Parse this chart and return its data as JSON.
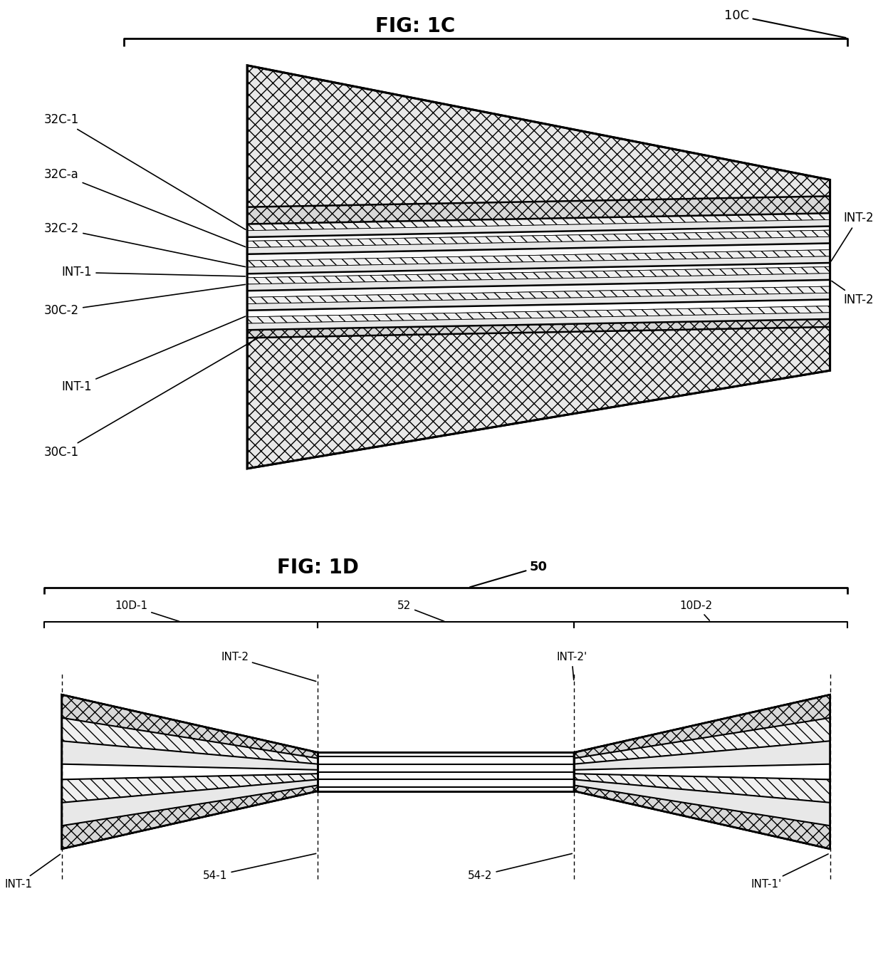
{
  "fig1c_title": "FIG: 1C",
  "fig1d_title": "FIG: 1D",
  "label_10C": "10C",
  "label_50": "50",
  "label_32C1": "32C-1",
  "label_32Ca": "32C-a",
  "label_32C2": "32C-2",
  "label_INT1_c": "INT-1",
  "label_30C2": "30C-2",
  "label_INT1_b": "INT-1",
  "label_30C1": "30C-1",
  "label_INT2_top": "INT-2",
  "label_INT2_bot": "INT-2",
  "label_10D1": "10D-1",
  "label_52": "52",
  "label_10D2": "10D-2",
  "label_INT2_d": "INT-2",
  "label_INT2p": "INT-2'",
  "label_541": "54-1",
  "label_542": "54-2",
  "label_INT1_d": "INT-1",
  "label_INT1p": "INT-1'",
  "bg_color": "#ffffff"
}
